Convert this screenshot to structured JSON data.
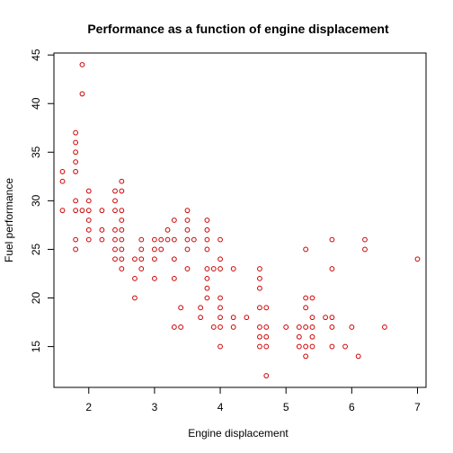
{
  "chart_data": {
    "type": "scatter",
    "title": "Performance as a function of engine displacement",
    "xlabel": "Engine displacement",
    "ylabel": "Fuel performance",
    "xlim": [
      1.47,
      7.13
    ],
    "ylim": [
      10.8,
      45.2
    ],
    "xticks": [
      2,
      3,
      4,
      5,
      6,
      7
    ],
    "yticks": [
      15,
      20,
      25,
      30,
      35,
      40,
      45
    ],
    "grid": false,
    "point_color": "#cc0000",
    "series": [
      {
        "points": [
          [
            1.6,
            33
          ],
          [
            1.6,
            32
          ],
          [
            1.6,
            29
          ],
          [
            1.8,
            37
          ],
          [
            1.8,
            36
          ],
          [
            1.8,
            35
          ],
          [
            1.8,
            34
          ],
          [
            1.8,
            33
          ],
          [
            1.8,
            30
          ],
          [
            1.8,
            29
          ],
          [
            1.8,
            26
          ],
          [
            1.8,
            25
          ],
          [
            1.9,
            44
          ],
          [
            1.9,
            41
          ],
          [
            1.9,
            29
          ],
          [
            2.0,
            31
          ],
          [
            2.0,
            30
          ],
          [
            2.0,
            29
          ],
          [
            2.0,
            28
          ],
          [
            2.0,
            27
          ],
          [
            2.0,
            26
          ],
          [
            2.2,
            29
          ],
          [
            2.2,
            27
          ],
          [
            2.2,
            26
          ],
          [
            2.4,
            31
          ],
          [
            2.4,
            30
          ],
          [
            2.4,
            29
          ],
          [
            2.4,
            27
          ],
          [
            2.4,
            26
          ],
          [
            2.4,
            25
          ],
          [
            2.4,
            24
          ],
          [
            2.5,
            32
          ],
          [
            2.5,
            31
          ],
          [
            2.5,
            29
          ],
          [
            2.5,
            28
          ],
          [
            2.5,
            27
          ],
          [
            2.5,
            26
          ],
          [
            2.5,
            25
          ],
          [
            2.5,
            24
          ],
          [
            2.5,
            23
          ],
          [
            2.7,
            24
          ],
          [
            2.7,
            22
          ],
          [
            2.7,
            20
          ],
          [
            2.8,
            26
          ],
          [
            2.8,
            25
          ],
          [
            2.8,
            24
          ],
          [
            2.8,
            23
          ],
          [
            3.0,
            26
          ],
          [
            3.0,
            25
          ],
          [
            3.0,
            24
          ],
          [
            3.0,
            22
          ],
          [
            3.1,
            26
          ],
          [
            3.1,
            25
          ],
          [
            3.2,
            27
          ],
          [
            3.2,
            26
          ],
          [
            3.3,
            28
          ],
          [
            3.3,
            26
          ],
          [
            3.3,
            24
          ],
          [
            3.3,
            22
          ],
          [
            3.3,
            17
          ],
          [
            3.4,
            19
          ],
          [
            3.4,
            17
          ],
          [
            3.5,
            29
          ],
          [
            3.5,
            28
          ],
          [
            3.5,
            27
          ],
          [
            3.5,
            26
          ],
          [
            3.5,
            25
          ],
          [
            3.5,
            23
          ],
          [
            3.6,
            26
          ],
          [
            3.7,
            19
          ],
          [
            3.7,
            18
          ],
          [
            3.8,
            28
          ],
          [
            3.8,
            27
          ],
          [
            3.8,
            26
          ],
          [
            3.8,
            25
          ],
          [
            3.8,
            23
          ],
          [
            3.8,
            22
          ],
          [
            3.8,
            21
          ],
          [
            3.8,
            20
          ],
          [
            3.9,
            23
          ],
          [
            3.9,
            17
          ],
          [
            4.0,
            26
          ],
          [
            4.0,
            24
          ],
          [
            4.0,
            23
          ],
          [
            4.0,
            20
          ],
          [
            4.0,
            19
          ],
          [
            4.0,
            18
          ],
          [
            4.0,
            17
          ],
          [
            4.0,
            15
          ],
          [
            4.2,
            23
          ],
          [
            4.2,
            18
          ],
          [
            4.2,
            17
          ],
          [
            4.4,
            18
          ],
          [
            4.6,
            23
          ],
          [
            4.6,
            22
          ],
          [
            4.6,
            21
          ],
          [
            4.6,
            19
          ],
          [
            4.6,
            17
          ],
          [
            4.6,
            16
          ],
          [
            4.6,
            15
          ],
          [
            4.7,
            19
          ],
          [
            4.7,
            17
          ],
          [
            4.7,
            16
          ],
          [
            4.7,
            15
          ],
          [
            4.7,
            12
          ],
          [
            5.0,
            17
          ],
          [
            5.2,
            17
          ],
          [
            5.2,
            16
          ],
          [
            5.2,
            15
          ],
          [
            5.3,
            25
          ],
          [
            5.3,
            20
          ],
          [
            5.3,
            19
          ],
          [
            5.3,
            17
          ],
          [
            5.3,
            15
          ],
          [
            5.3,
            14
          ],
          [
            5.4,
            20
          ],
          [
            5.4,
            18
          ],
          [
            5.4,
            17
          ],
          [
            5.4,
            16
          ],
          [
            5.4,
            15
          ],
          [
            5.6,
            18
          ],
          [
            5.7,
            26
          ],
          [
            5.7,
            23
          ],
          [
            5.7,
            18
          ],
          [
            5.7,
            17
          ],
          [
            5.7,
            15
          ],
          [
            5.9,
            15
          ],
          [
            6.0,
            17
          ],
          [
            6.1,
            14
          ],
          [
            6.2,
            26
          ],
          [
            6.2,
            25
          ],
          [
            6.5,
            17
          ],
          [
            7.0,
            24
          ]
        ]
      }
    ]
  }
}
